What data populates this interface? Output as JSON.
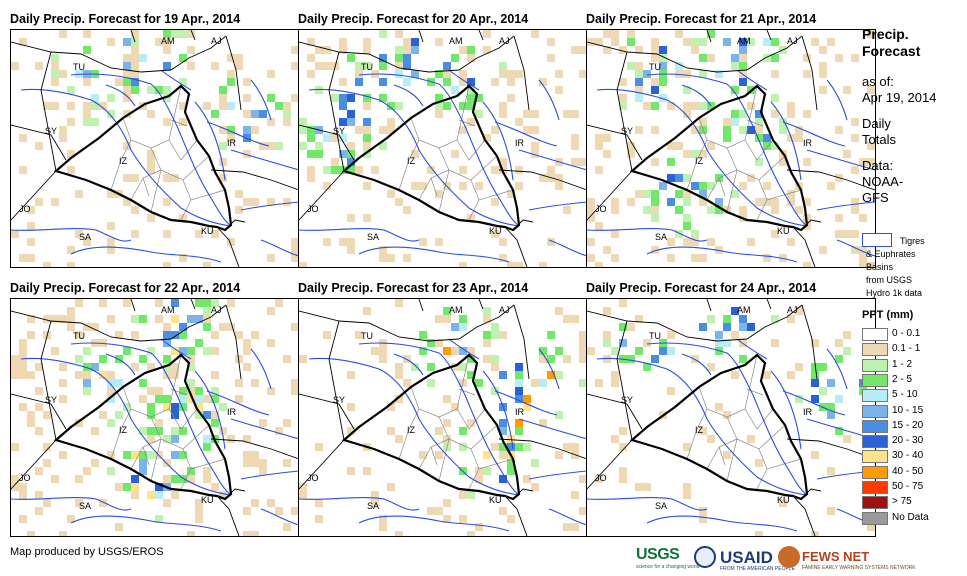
{
  "panels": [
    {
      "title": "Daily Precip. Forecast for 19 Apr., 2014",
      "wet": [
        0.1,
        0.0,
        0.0,
        0.0
      ],
      "max_class": 6
    },
    {
      "title": "Daily Precip. Forecast for 20 Apr., 2014",
      "wet": [
        0.12,
        0.06,
        0.05,
        0.0
      ],
      "max_class": 7
    },
    {
      "title": "Daily Precip. Forecast for 21 Apr., 2014",
      "wet": [
        0.14,
        0.07,
        0.06,
        0.03
      ],
      "max_class": 7
    },
    {
      "title": "Daily Precip. Forecast for 22 Apr., 2014",
      "wet": [
        0.16,
        0.08,
        0.07,
        0.03
      ],
      "max_class": 8
    },
    {
      "title": "Daily Precip. Forecast for 23 Apr., 2014",
      "wet": [
        0.09,
        0.05,
        0.05,
        0.02
      ],
      "max_class": 9
    },
    {
      "title": "Daily Precip. Forecast for 24 Apr., 2014",
      "wet": [
        0.05,
        0.02,
        0.04,
        0.01
      ],
      "max_class": 7
    }
  ],
  "map_labels": [
    "AM",
    "AJ",
    "TU",
    "SY",
    "IR",
    "IZ",
    "JO",
    "SA",
    "KU"
  ],
  "sidebar": {
    "title_line1": "Precip.",
    "title_line2": "Forecast",
    "asof_label": "as of:",
    "asof_date": "Apr 19, 2014",
    "period_line1": "Daily",
    "period_line2": "Totals",
    "data_label": "Data:",
    "data_source_line1": "NOAA-",
    "data_source_line2": "GFS",
    "basin_line1": "Tigres",
    "basin_line2": "& Euphrates",
    "basin_line3": "Basins",
    "basin_line4": "from USGS",
    "basin_line5": "Hydro 1k data"
  },
  "legend": {
    "title": "PPT (mm)",
    "classes": [
      {
        "label": "0 - 0.1",
        "color": "#ffffff"
      },
      {
        "label": "0.1 - 1",
        "color": "#efd8b4"
      },
      {
        "label": "1 - 2",
        "color": "#bff2b0"
      },
      {
        "label": "2 - 5",
        "color": "#72e86a"
      },
      {
        "label": "5 - 10",
        "color": "#b8ecf6"
      },
      {
        "label": "10 - 15",
        "color": "#7ab4ea"
      },
      {
        "label": "15 - 20",
        "color": "#4a8ee4"
      },
      {
        "label": "20 - 30",
        "color": "#2a62d6"
      },
      {
        "label": "30 - 40",
        "color": "#ffe38a"
      },
      {
        "label": "40 - 50",
        "color": "#ff9a00"
      },
      {
        "label": "50 - 75",
        "color": "#ff3a00"
      },
      {
        "label": "> 75",
        "color": "#a01010"
      },
      {
        "label": "No Data",
        "color": "#9a9a9a"
      }
    ]
  },
  "footer": {
    "credit": "Map produced by USGS/EROS"
  },
  "logos": {
    "usgs": "USGS",
    "usgs_tagline": "science for a changing world",
    "usaid": "USAID",
    "usaid_tagline": "FROM THE AMERICAN PEOPLE",
    "fews": "FEWS NET",
    "fews_tagline": "FAMINE EARLY WARNING SYSTEMS NETWORK"
  },
  "colors": {
    "river": "#2b4fd8",
    "border": "#000000",
    "province": "#8a8a8a"
  }
}
